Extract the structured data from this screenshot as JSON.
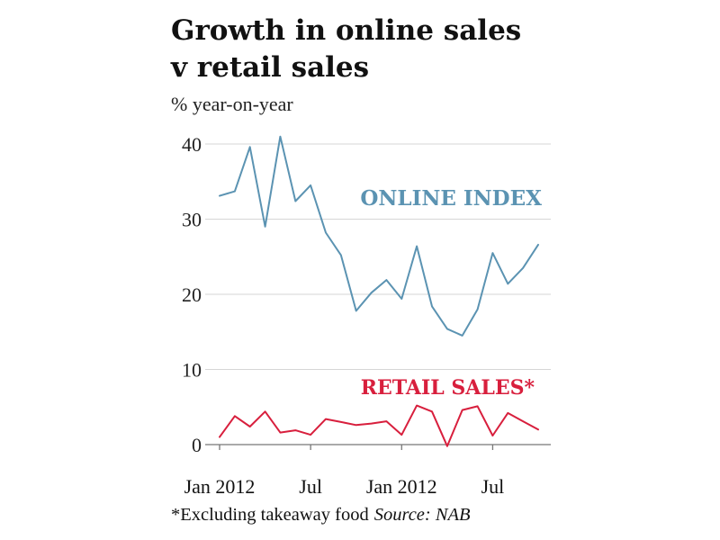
{
  "chart_data": {
    "type": "line",
    "title": "Growth in online sales v retail sales",
    "title_lines": [
      "Growth in online sales",
      "v retail sales"
    ],
    "ylabel": "% year-on-year",
    "ylim": [
      0,
      40
    ],
    "y_ticks": [
      0,
      10,
      20,
      30,
      40
    ],
    "x_tick_labels": [
      "Jan 2012",
      "Jul",
      "Jan 2012",
      "Jul"
    ],
    "grid": true,
    "series": [
      {
        "name": "ONLINE INDEX",
        "color": "#5b93b2",
        "values": [
          33.1,
          33.7,
          39.6,
          29.0,
          41.0,
          32.4,
          34.5,
          28.2,
          25.2,
          17.8,
          20.2,
          21.9,
          19.4,
          26.4,
          18.4,
          15.4,
          14.5,
          18.0,
          25.5,
          21.4,
          23.5,
          26.6
        ]
      },
      {
        "name": "RETAIL SALES*",
        "color": "#d81f3d",
        "values": [
          1.0,
          3.8,
          2.4,
          4.4,
          1.6,
          1.9,
          1.3,
          3.4,
          3.0,
          2.6,
          2.8,
          3.1,
          1.3,
          5.2,
          4.4,
          -0.2,
          4.6,
          5.1,
          1.2,
          4.2,
          3.1,
          2.0
        ]
      }
    ],
    "annotations": [
      "ONLINE INDEX",
      "RETAIL SALES*"
    ]
  },
  "footnote": {
    "text": "*Excluding takeaway food",
    "source": "Source: NAB"
  }
}
